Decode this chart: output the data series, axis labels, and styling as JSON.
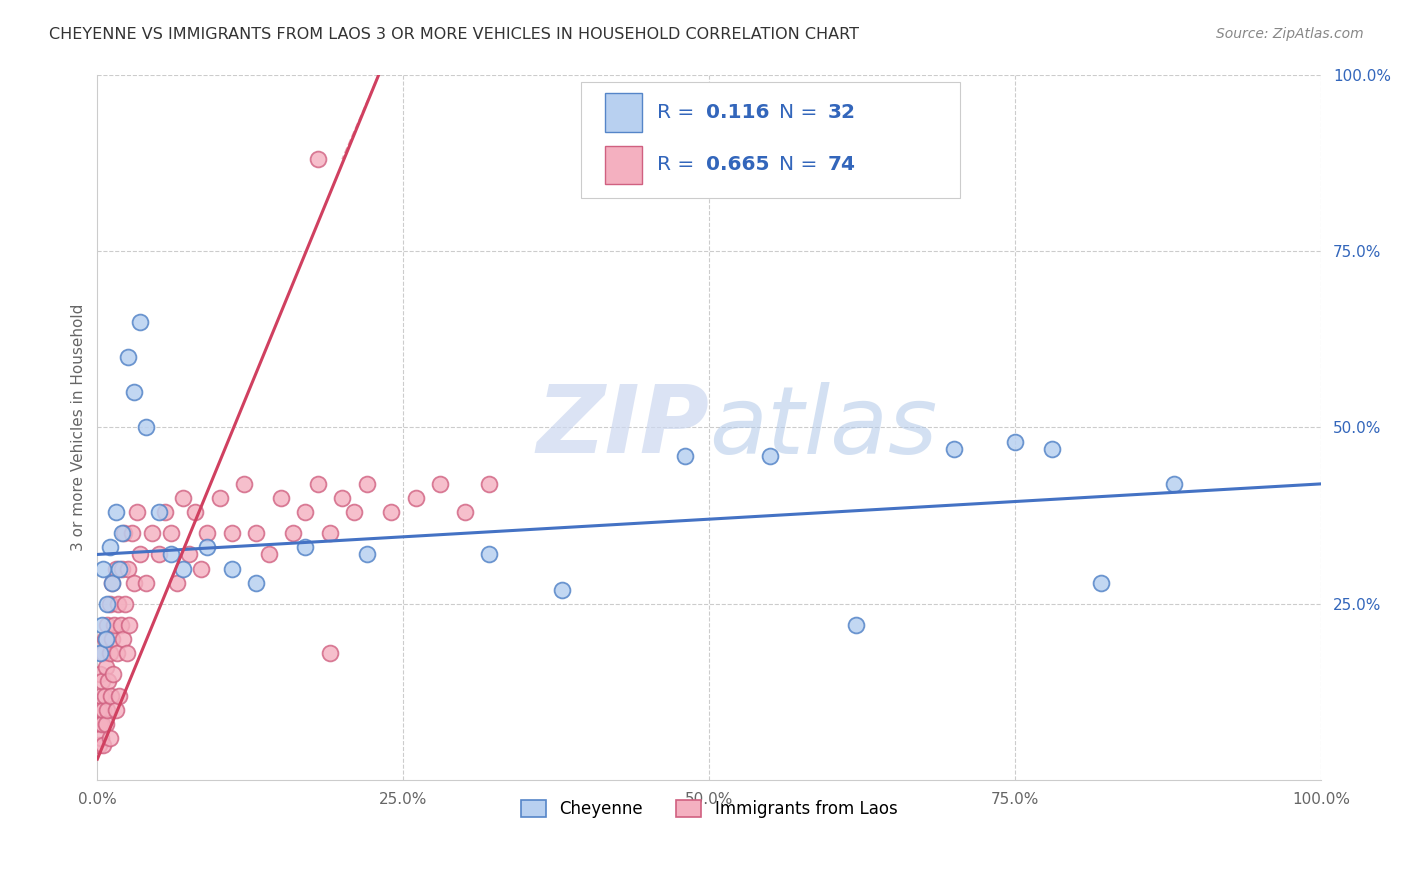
{
  "title": "CHEYENNE VS IMMIGRANTS FROM LAOS 3 OR MORE VEHICLES IN HOUSEHOLD CORRELATION CHART",
  "source": "Source: ZipAtlas.com",
  "ylabel": "3 or more Vehicles in Household",
  "watermark_zip": "ZIP",
  "watermark_atlas": "atlas",
  "legend_entries": [
    {
      "label": "Cheyenne",
      "color": "#b8d0f0",
      "edge": "#5585c8",
      "R": "0.116",
      "N": "32"
    },
    {
      "label": "Immigrants from Laos",
      "color": "#f4b0c0",
      "edge": "#d06080",
      "R": "0.665",
      "N": "74"
    }
  ],
  "blue_line_color": "#4472C4",
  "pink_line_color": "#d04060",
  "background_color": "#ffffff",
  "grid_color": "#cccccc",
  "title_color": "#333333",
  "source_color": "#888888",
  "legend_text_color": "#3366bb",
  "xlim": [
    0,
    100
  ],
  "ylim": [
    0,
    100
  ],
  "xticks": [
    0,
    25,
    50,
    75,
    100
  ],
  "yticks": [
    25,
    50,
    75,
    100
  ],
  "xticklabels": [
    "0.0%",
    "25.0%",
    "50.0%",
    "75.0%",
    "100.0%"
  ],
  "yticklabels": [
    "25.0%",
    "50.0%",
    "75.0%",
    "100.0%"
  ],
  "cheyenne_x": [
    0.2,
    0.4,
    0.5,
    0.7,
    0.8,
    1.0,
    1.2,
    1.5,
    1.8,
    2.0,
    2.5,
    3.0,
    3.5,
    4.0,
    5.0,
    6.0,
    7.0,
    9.0,
    11.0,
    13.0,
    17.0,
    22.0,
    32.0,
    38.0,
    48.0,
    55.0,
    62.0,
    70.0,
    75.0,
    78.0,
    82.0,
    88.0
  ],
  "cheyenne_y": [
    18.0,
    22.0,
    30.0,
    20.0,
    25.0,
    33.0,
    28.0,
    38.0,
    30.0,
    35.0,
    60.0,
    55.0,
    65.0,
    50.0,
    38.0,
    32.0,
    30.0,
    33.0,
    30.0,
    28.0,
    33.0,
    32.0,
    32.0,
    27.0,
    46.0,
    46.0,
    22.0,
    47.0,
    48.0,
    47.0,
    28.0,
    42.0
  ],
  "laos_x": [
    0.1,
    0.1,
    0.2,
    0.2,
    0.3,
    0.3,
    0.4,
    0.4,
    0.5,
    0.5,
    0.5,
    0.6,
    0.6,
    0.7,
    0.7,
    0.8,
    0.8,
    0.9,
    1.0,
    1.0,
    1.0,
    1.1,
    1.2,
    1.2,
    1.3,
    1.4,
    1.5,
    1.5,
    1.6,
    1.7,
    1.8,
    1.9,
    2.0,
    2.1,
    2.2,
    2.3,
    2.4,
    2.5,
    2.6,
    2.8,
    3.0,
    3.2,
    3.5,
    4.0,
    4.5,
    5.0,
    5.5,
    6.0,
    6.5,
    7.0,
    7.5,
    8.0,
    8.5,
    9.0,
    10.0,
    11.0,
    12.0,
    13.0,
    14.0,
    15.0,
    16.0,
    17.0,
    18.0,
    19.0,
    20.0,
    21.0,
    22.0,
    24.0,
    26.0,
    28.0,
    30.0,
    32.0,
    18.0,
    19.0
  ],
  "laos_y": [
    5.0,
    10.0,
    8.0,
    15.0,
    6.0,
    12.0,
    8.0,
    14.0,
    5.0,
    10.0,
    18.0,
    12.0,
    20.0,
    8.0,
    16.0,
    10.0,
    22.0,
    14.0,
    6.0,
    18.0,
    25.0,
    12.0,
    20.0,
    28.0,
    15.0,
    22.0,
    10.0,
    30.0,
    18.0,
    25.0,
    12.0,
    22.0,
    30.0,
    20.0,
    35.0,
    25.0,
    18.0,
    30.0,
    22.0,
    35.0,
    28.0,
    38.0,
    32.0,
    28.0,
    35.0,
    32.0,
    38.0,
    35.0,
    28.0,
    40.0,
    32.0,
    38.0,
    30.0,
    35.0,
    40.0,
    35.0,
    42.0,
    35.0,
    32.0,
    40.0,
    35.0,
    38.0,
    42.0,
    35.0,
    40.0,
    38.0,
    42.0,
    38.0,
    40.0,
    42.0,
    38.0,
    42.0,
    88.0,
    18.0
  ],
  "blue_line_y0": 32.0,
  "blue_line_y100": 42.0,
  "pink_line_x0": 0.0,
  "pink_line_y0": 3.0,
  "pink_line_x1": 23.0,
  "pink_line_y1": 100.0
}
